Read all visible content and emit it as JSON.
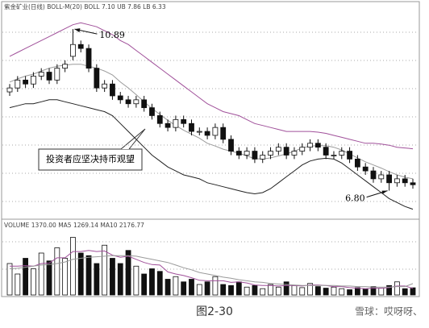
{
  "chart_data": {
    "type": "candlestick",
    "title": "紫金矿业(日线)  BOLL-M(20)  BOLL 7.10  UB 7.86  LB 6.33",
    "open": [
      9.3,
      9.4,
      9.6,
      9.5,
      9.7,
      9.8,
      9.6,
      9.9,
      10.2,
      10.5,
      10.4,
      9.9,
      9.4,
      9.5,
      9.2,
      9.1,
      9.0,
      9.1,
      8.9,
      8.7,
      8.5,
      8.4,
      8.6,
      8.5,
      8.3,
      8.3,
      8.2,
      8.4,
      8.1,
      7.8,
      7.7,
      7.8,
      7.6,
      7.7,
      7.8,
      7.9,
      7.7,
      7.8,
      7.9,
      8.0,
      7.9,
      7.7,
      7.7,
      7.8,
      7.6,
      7.4,
      7.3,
      7.1,
      7.2,
      7.0,
      7.1,
      7.0
    ],
    "high": [
      9.5,
      9.7,
      9.7,
      9.8,
      9.9,
      9.9,
      10.0,
      10.1,
      10.89,
      10.6,
      10.5,
      10.0,
      9.6,
      9.6,
      9.3,
      9.2,
      9.2,
      9.2,
      9.0,
      8.8,
      8.6,
      8.7,
      8.7,
      8.6,
      8.4,
      8.4,
      8.5,
      8.5,
      8.2,
      7.9,
      7.9,
      7.9,
      7.8,
      7.9,
      8.0,
      8.0,
      7.9,
      8.0,
      8.1,
      8.1,
      8.0,
      7.8,
      7.9,
      7.9,
      7.7,
      7.5,
      7.4,
      7.3,
      7.3,
      7.2,
      7.2,
      7.1
    ],
    "low": [
      9.2,
      9.3,
      9.4,
      9.4,
      9.6,
      9.5,
      9.5,
      9.8,
      10.1,
      10.3,
      9.8,
      9.3,
      9.3,
      9.1,
      9.0,
      8.9,
      8.9,
      8.8,
      8.6,
      8.4,
      8.3,
      8.3,
      8.4,
      8.2,
      8.2,
      8.1,
      8.1,
      8.0,
      7.7,
      7.6,
      7.6,
      7.5,
      7.5,
      7.6,
      7.7,
      7.6,
      7.6,
      7.7,
      7.8,
      7.8,
      7.6,
      7.6,
      7.6,
      7.5,
      7.3,
      7.2,
      7.0,
      7.0,
      6.8,
      6.9,
      6.9,
      6.85
    ],
    "close": [
      9.4,
      9.6,
      9.5,
      9.7,
      9.8,
      9.6,
      9.9,
      10.0,
      10.5,
      10.4,
      9.9,
      9.4,
      9.5,
      9.2,
      9.1,
      9.0,
      9.1,
      8.9,
      8.7,
      8.5,
      8.4,
      8.6,
      8.5,
      8.3,
      8.3,
      8.2,
      8.4,
      8.1,
      7.8,
      7.7,
      7.8,
      7.6,
      7.7,
      7.8,
      7.9,
      7.7,
      7.8,
      7.9,
      8.0,
      7.9,
      7.7,
      7.7,
      7.8,
      7.6,
      7.4,
      7.3,
      7.1,
      7.2,
      7.0,
      7.1,
      7.0,
      6.95
    ],
    "boll_upper": [
      10.2,
      10.3,
      10.4,
      10.5,
      10.6,
      10.7,
      10.8,
      10.9,
      11.0,
      11.05,
      11.0,
      10.95,
      10.85,
      10.75,
      10.6,
      10.5,
      10.35,
      10.2,
      10.05,
      9.9,
      9.75,
      9.6,
      9.45,
      9.3,
      9.15,
      9.0,
      8.9,
      8.8,
      8.75,
      8.7,
      8.6,
      8.5,
      8.45,
      8.4,
      8.35,
      8.3,
      8.3,
      8.3,
      8.3,
      8.28,
      8.25,
      8.2,
      8.15,
      8.1,
      8.05,
      8.0,
      8.0,
      7.98,
      7.95,
      7.9,
      7.88,
      7.86
    ],
    "boll_mid": [
      9.55,
      9.63,
      9.7,
      9.75,
      9.83,
      9.9,
      9.95,
      9.98,
      10.0,
      10.0,
      9.95,
      9.9,
      9.83,
      9.73,
      9.55,
      9.4,
      9.23,
      9.05,
      8.88,
      8.73,
      8.58,
      8.45,
      8.33,
      8.23,
      8.13,
      8.0,
      7.93,
      7.85,
      7.8,
      7.75,
      7.68,
      7.61,
      7.6,
      7.63,
      7.68,
      7.73,
      7.8,
      7.88,
      7.93,
      7.94,
      7.94,
      7.9,
      7.83,
      7.73,
      7.63,
      7.53,
      7.45,
      7.37,
      7.28,
      7.2,
      7.14,
      7.1
    ],
    "boll_lower": [
      8.9,
      8.95,
      9.0,
      9.0,
      9.05,
      9.1,
      9.1,
      9.05,
      9.0,
      8.95,
      8.9,
      8.85,
      8.8,
      8.7,
      8.5,
      8.3,
      8.1,
      7.9,
      7.7,
      7.55,
      7.4,
      7.3,
      7.2,
      7.15,
      7.1,
      7.0,
      6.95,
      6.9,
      6.85,
      6.8,
      6.75,
      6.72,
      6.75,
      6.85,
      7.0,
      7.15,
      7.3,
      7.45,
      7.55,
      7.6,
      7.62,
      7.6,
      7.5,
      7.35,
      7.2,
      7.05,
      6.9,
      6.75,
      6.6,
      6.5,
      6.4,
      6.33
    ],
    "colors": {
      "upper": "#a0509a",
      "mid": "#9a9a9a",
      "lower": "#222222",
      "candle": "#111111",
      "ma5": "#a0509a",
      "ma10": "#9a9a9a"
    },
    "ylim": [
      6.2,
      11.3
    ],
    "grid": true,
    "annotations": [
      "10.89",
      "6.80",
      "投资者应坚决持币观望"
    ],
    "volume": {
      "title": "VOLUME 1370.00  MA5 1269.14  MA10 2176.77",
      "values": [
        6000,
        4000,
        7000,
        5000,
        8000,
        6500,
        9000,
        7000,
        11000,
        8000,
        7500,
        6000,
        9500,
        7000,
        6000,
        8500,
        5500,
        4000,
        5000,
        4500,
        3000,
        3500,
        2500,
        3000,
        2000,
        2500,
        3500,
        2000,
        1800,
        2500,
        1500,
        1800,
        1200,
        2000,
        1500,
        2500,
        1800,
        1400,
        2200,
        1600,
        1300,
        1500,
        1200,
        1000,
        1400,
        1100,
        1600,
        1300,
        1800,
        2500,
        1200,
        1370
      ],
      "ma5": [
        5500,
        5500,
        5600,
        5500,
        6000,
        6100,
        7100,
        7100,
        8300,
        8300,
        8500,
        8300,
        8400,
        7600,
        7200,
        7400,
        6800,
        6200,
        5800,
        5700,
        4400,
        4000,
        3700,
        3300,
        2800,
        2700,
        2700,
        2700,
        2400,
        2500,
        2300,
        1900,
        1800,
        1800,
        1700,
        1800,
        1800,
        1700,
        1900,
        1900,
        1800,
        1600,
        1600,
        1400,
        1300,
        1200,
        1300,
        1300,
        1400,
        1700,
        1700,
        1269.14
      ],
      "ma10": [
        5000,
        5100,
        5300,
        5500,
        5700,
        5800,
        6000,
        6300,
        6800,
        7000,
        7200,
        7300,
        7400,
        7500,
        7500,
        7500,
        7400,
        7100,
        6800,
        6500,
        6200,
        5700,
        5200,
        4800,
        4300,
        4000,
        3700,
        3400,
        3200,
        2900,
        2700,
        2500,
        2400,
        2200,
        2100,
        2000,
        1900,
        1800,
        1800,
        1800,
        1800,
        1800,
        1700,
        1700,
        1600,
        1600,
        1500,
        1500,
        1500,
        1600,
        1600,
        2176.77
      ],
      "ylim": [
        0,
        12000
      ]
    }
  },
  "caption": "图2-30",
  "watermark": "雪球：哎呀呀、"
}
